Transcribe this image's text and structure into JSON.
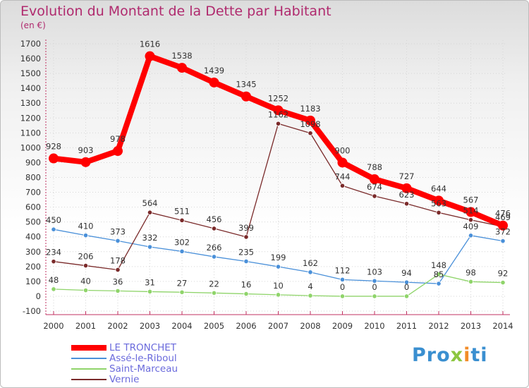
{
  "chart_data": {
    "type": "line",
    "title": "Evolution du Montant de la Dette par Habitant",
    "subtitle": "(en €)",
    "categories": [
      "2000",
      "2001",
      "2002",
      "2003",
      "2004",
      "2005",
      "2006",
      "2007",
      "2008",
      "2009",
      "2010",
      "2011",
      "2012",
      "2013",
      "2014"
    ],
    "ylim": [
      -100,
      1700
    ],
    "yticks": [
      -100,
      0,
      100,
      200,
      300,
      400,
      500,
      600,
      700,
      800,
      900,
      1000,
      1100,
      1200,
      1300,
      1400,
      1500,
      1600,
      1700
    ],
    "grid": true,
    "legend_position": "bottom-left",
    "series": [
      {
        "name": "LE TRONCHET",
        "color": "#ff0000",
        "values": [
          928,
          903,
          978,
          1616,
          1538,
          1439,
          1345,
          1252,
          1183,
          900,
          788,
          727,
          644,
          567,
          476
        ]
      },
      {
        "name": "Assé-le-Riboul",
        "color": "#4a90d9",
        "values": [
          450,
          410,
          373,
          332,
          302,
          266,
          235,
          199,
          162,
          112,
          103,
          94,
          85,
          409,
          372
        ]
      },
      {
        "name": "Saint-Marceau",
        "color": "#8fd46a",
        "values": [
          48,
          40,
          36,
          31,
          27,
          22,
          16,
          10,
          4,
          0,
          0,
          0,
          148,
          98,
          92
        ]
      },
      {
        "name": "Vernie",
        "color": "#7a2a2a",
        "values": [
          234,
          206,
          178,
          564,
          511,
          456,
          399,
          1162,
          1098,
          744,
          674,
          623,
          563,
          514,
          469
        ]
      }
    ]
  },
  "logo": {
    "part1": "Pro",
    "part2": "x",
    "part3": "i",
    "part4": "ti"
  }
}
